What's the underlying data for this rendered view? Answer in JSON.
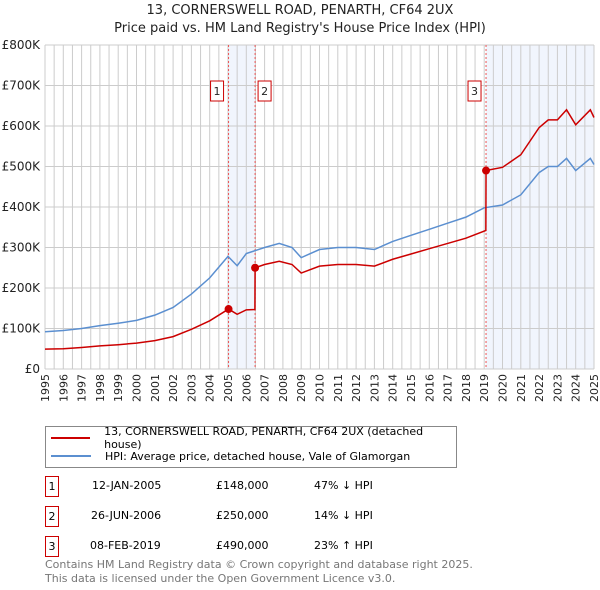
{
  "header": {
    "title": "13, CORNERSWELL ROAD, PENARTH, CF64 2UX",
    "subtitle": "Price paid vs. HM Land Registry's House Price Index (HPI)"
  },
  "chart_data": {
    "type": "line",
    "title": "13, CORNERSWELL ROAD, PENARTH, CF64 2UX",
    "subtitle": "Price paid vs. HM Land Registry's House Price Index (HPI)",
    "xlim": [
      1995,
      2025
    ],
    "ylim": [
      0,
      800000
    ],
    "x_ticks": [
      "1995",
      "1996",
      "1997",
      "1998",
      "1999",
      "2000",
      "2001",
      "2002",
      "2003",
      "2004",
      "2005",
      "2006",
      "2007",
      "2008",
      "2009",
      "2010",
      "2011",
      "2012",
      "2013",
      "2014",
      "2015",
      "2016",
      "2017",
      "2018",
      "2019",
      "2020",
      "2021",
      "2022",
      "2023",
      "2024",
      "2025"
    ],
    "y_ticks": [
      {
        "v": 0,
        "label": "£0"
      },
      {
        "v": 100000,
        "label": "£100K"
      },
      {
        "v": 200000,
        "label": "£200K"
      },
      {
        "v": 300000,
        "label": "£300K"
      },
      {
        "v": 400000,
        "label": "£400K"
      },
      {
        "v": 500000,
        "label": "£500K"
      },
      {
        "v": 600000,
        "label": "£600K"
      },
      {
        "v": 700000,
        "label": "£700K"
      },
      {
        "v": 800000,
        "label": "£800K"
      }
    ],
    "grid": true,
    "legend_placement": "below",
    "series": [
      {
        "name": "13, CORNERSWELL ROAD, PENARTH, CF64 2UX (detached house)",
        "color": "#cc0000",
        "x": [
          1995,
          1996,
          1997,
          1998,
          1999,
          2000,
          2001,
          2002,
          2003,
          2004,
          2005.03,
          2005.5,
          2006,
          2006.47,
          2006.48,
          2007,
          2007.8,
          2008.5,
          2009,
          2010,
          2011,
          2012,
          2013,
          2014,
          2015,
          2016,
          2017,
          2018,
          2019.09,
          2019.1,
          2020,
          2021,
          2022,
          2022.5,
          2023,
          2023.5,
          2024,
          2024.8,
          2025
        ],
        "y": [
          49000,
          50000,
          53000,
          57000,
          60000,
          64000,
          70000,
          80000,
          98000,
          119000,
          148000,
          135000,
          146000,
          147000,
          250000,
          258000,
          266000,
          258000,
          237000,
          254000,
          258000,
          258000,
          254000,
          271000,
          284000,
          297000,
          310000,
          323000,
          342000,
          490000,
          498000,
          529000,
          596000,
          615000,
          615000,
          640000,
          603000,
          640000,
          621000
        ]
      },
      {
        "name": "HPI: Average price, detached house, Vale of Glamorgan",
        "color": "#5b8fd0",
        "x": [
          1995,
          1996,
          1997,
          1998,
          1999,
          2000,
          2001,
          2002,
          2003,
          2004,
          2005,
          2005.5,
          2006,
          2007,
          2007.8,
          2008.5,
          2009,
          2010,
          2011,
          2012,
          2013,
          2014,
          2015,
          2016,
          2017,
          2018,
          2019,
          2020,
          2021,
          2022,
          2022.5,
          2023,
          2023.5,
          2024,
          2024.8,
          2025
        ],
        "y": [
          92000,
          95000,
          100000,
          107000,
          113000,
          120000,
          133000,
          152000,
          185000,
          225000,
          278000,
          255000,
          285000,
          300000,
          310000,
          300000,
          275000,
          295000,
          300000,
          300000,
          295000,
          315000,
          330000,
          345000,
          360000,
          375000,
          398000,
          405000,
          430000,
          485000,
          500000,
          500000,
          520000,
          490000,
          520000,
          505000
        ]
      }
    ],
    "annotations": [
      {
        "label": "1",
        "x": 2005.03,
        "y": 148000
      },
      {
        "label": "2",
        "x": 2006.48,
        "y": 250000
      },
      {
        "label": "3",
        "x": 2019.1,
        "y": 490000
      }
    ],
    "shaded_ranges": [
      [
        2005.03,
        2006.48
      ],
      [
        2019.1,
        2025
      ]
    ]
  },
  "legend": {
    "items": [
      {
        "label": "13, CORNERSWELL ROAD, PENARTH, CF64 2UX (detached house)",
        "color": "#cc0000"
      },
      {
        "label": "HPI: Average price, detached house, Vale of Glamorgan",
        "color": "#5b8fd0"
      }
    ]
  },
  "transactions": [
    {
      "num": "1",
      "date": "12-JAN-2005",
      "price": "£148,000",
      "hpi": "47% ↓ HPI"
    },
    {
      "num": "2",
      "date": "26-JUN-2006",
      "price": "£250,000",
      "hpi": "14% ↓ HPI"
    },
    {
      "num": "3",
      "date": "08-FEB-2019",
      "price": "£490,000",
      "hpi": "23% ↑ HPI"
    }
  ],
  "footer": {
    "line1": "Contains HM Land Registry data © Crown copyright and database right 2025.",
    "line2": "This data is licensed under the Open Government Licence v3.0."
  }
}
